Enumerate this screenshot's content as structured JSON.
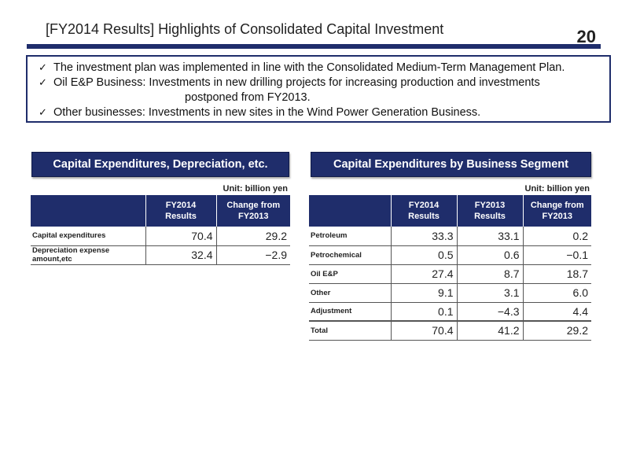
{
  "header": {
    "title": "[FY2014 Results] Highlights of Consolidated Capital Investment",
    "page_number": "20"
  },
  "highlights": {
    "check_glyph": "✓",
    "items": [
      {
        "line1": "The investment plan was implemented in line with the Consolidated Medium-Term Management Plan.",
        "line2": ""
      },
      {
        "line1": "Oil E&P Business: Investments in new drilling projects for increasing production and investments",
        "line2": "postponed from FY2013."
      },
      {
        "line1": "Other businesses: Investments in new sites in the Wind Power Generation Business.",
        "line2": ""
      }
    ]
  },
  "left_panel": {
    "title": "Capital Expenditures, Depreciation, etc.",
    "unit": "Unit: billion yen",
    "columns": [
      "",
      "FY2014\nResults",
      "Change from\nFY2013"
    ],
    "rows": [
      {
        "label": "Capital expenditures",
        "values": [
          "70.4",
          "29.2"
        ]
      },
      {
        "label": "Depreciation expense amount,etc",
        "values": [
          "32.4",
          "−2.9"
        ]
      }
    ]
  },
  "right_panel": {
    "title": "Capital Expenditures by Business Segment",
    "unit": "Unit: billion yen",
    "columns": [
      "",
      "FY2014\nResults",
      "FY2013\nResults",
      "Change from\nFY2013"
    ],
    "rows": [
      {
        "label": "Petroleum",
        "values": [
          "33.3",
          "33.1",
          "0.2"
        ]
      },
      {
        "label": "Petrochemical",
        "values": [
          "0.5",
          "0.6",
          "−0.1"
        ]
      },
      {
        "label": "Oil E&P",
        "values": [
          "27.4",
          "8.7",
          "18.7"
        ]
      },
      {
        "label": "Other",
        "values": [
          "9.1",
          "3.1",
          "6.0"
        ]
      },
      {
        "label": "Adjustment",
        "values": [
          "0.1",
          "−4.3",
          "4.4"
        ]
      },
      {
        "label": "Total",
        "values": [
          "70.4",
          "41.2",
          "29.2"
        ]
      }
    ]
  },
  "colors": {
    "navy": "#1f2d6b",
    "text": "#222222"
  }
}
